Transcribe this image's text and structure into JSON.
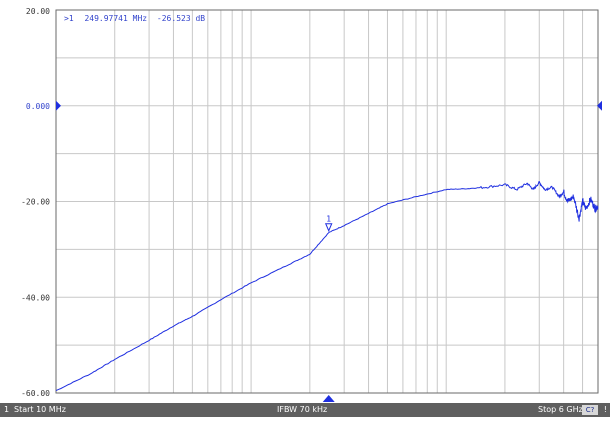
{
  "marker_readout": {
    "prefix": ">1",
    "frequency": "249.97741 MHz",
    "value": "-26.523 dB"
  },
  "status_bar": {
    "channel": "1",
    "start": "Start 10 MHz",
    "ifbw": "IFBW 70 kHz",
    "stop": "Stop 6 GHz",
    "channel_badge": "C?",
    "tail": "!"
  },
  "colors": {
    "trace": "#1f2fe0",
    "text": "#3344cc",
    "grid": "#c8c8c8",
    "frame": "#6a6a6a",
    "status_bg": "#5f5f5f"
  },
  "chart_data": {
    "type": "line",
    "title": "",
    "xlabel": "",
    "ylabel": "",
    "x_scale": "log",
    "x_unit": "MHz",
    "xlim": [
      10,
      6000
    ],
    "ylim": [
      -60,
      20
    ],
    "y_ticks": [
      "20.00",
      "0.000",
      "-20.00",
      "-40.00",
      "-60.00"
    ],
    "y_tick_values": [
      20,
      0,
      -20,
      -40,
      -60
    ],
    "grid": true,
    "reference_level": 0,
    "marker": {
      "label": "1",
      "x": 249.97741,
      "y": -26.523
    },
    "series": [
      {
        "x": [
          10,
          15,
          20,
          30,
          40,
          50,
          70,
          100,
          150,
          200,
          250,
          300,
          400,
          500,
          700,
          1000,
          1300,
          1600,
          2000,
          2300,
          2600,
          2800,
          3000,
          3200,
          3500,
          3800,
          4000,
          4200,
          4500,
          4800,
          5000,
          5200,
          5500,
          5800,
          6000
        ],
        "y": [
          -59.5,
          -56,
          -53,
          -49,
          -46,
          -44,
          -40.5,
          -37,
          -33.5,
          -31,
          -26.5,
          -25,
          -22.5,
          -20.5,
          -19,
          -17.5,
          -17.3,
          -17,
          -16.5,
          -17.5,
          -16.2,
          -17.5,
          -16,
          -17.5,
          -17,
          -19,
          -18,
          -20,
          -19,
          -23.5,
          -20,
          -21.5,
          -19.5,
          -21.5,
          -21
        ]
      }
    ]
  }
}
